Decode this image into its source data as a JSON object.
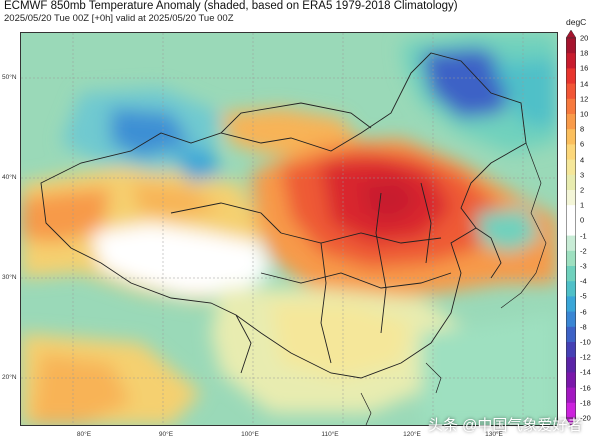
{
  "header": {
    "title": "ECMWF 850mb Temperature Anomaly (shaded, based on ERA5 1979-2018 Climatology)",
    "subtitle": "2025/05/20 Tue 00Z [+0h] valid at 2025/05/20 Tue 00Z"
  },
  "map": {
    "lat_labels": [
      "50°N",
      "40°N",
      "30°N",
      "20°N"
    ],
    "lon_labels": [
      "80°E",
      "90°E",
      "100°E",
      "110°E",
      "120°E",
      "130°E"
    ]
  },
  "colorbar": {
    "unit": "degC",
    "ticks": [
      "20",
      "18",
      "16",
      "14",
      "12",
      "10",
      "8",
      "6",
      "4",
      "3",
      "2",
      "1",
      "0",
      "-1",
      "-2",
      "-3",
      "-4",
      "-5",
      "-6",
      "-8",
      "-10",
      "-12",
      "-14",
      "-16",
      "-18",
      "-20"
    ],
    "colors": [
      "#a5142e",
      "#c81c2e",
      "#e8352e",
      "#f25636",
      "#f77a3e",
      "#f99b4a",
      "#fbbf5d",
      "#fcd77a",
      "#f5e79a",
      "#e8ecb0",
      "#f4f6d8",
      "#ffffff",
      "#ffffff",
      "#c8ecd6",
      "#9ee0c0",
      "#6fd1bd",
      "#4fc0c8",
      "#3aa6d8",
      "#3a86d4",
      "#3d62c6",
      "#4540b4",
      "#5a24a6",
      "#7a18aa",
      "#a218c0",
      "#cc22dd"
    ]
  },
  "watermark": "头条 @中国气象爱好者"
}
